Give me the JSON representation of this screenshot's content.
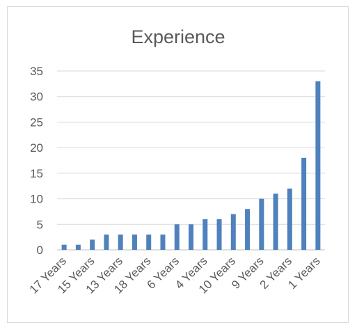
{
  "chart_data": {
    "type": "bar",
    "title": "Experience",
    "xlabel": "",
    "ylabel": "",
    "ylim": [
      0,
      35
    ],
    "yticks": [
      0,
      5,
      10,
      15,
      20,
      25,
      30,
      35
    ],
    "grid": true,
    "legend": "none",
    "bar_color": "#4f81bd",
    "categories": [
      "17 Years",
      "",
      "15 Years",
      "",
      "13 Years",
      "",
      "18 Years",
      "",
      "6 Years",
      "",
      "4 Years",
      "",
      "10 Years",
      "",
      "9 Years",
      "",
      "2 Years",
      "",
      "1 Years"
    ],
    "values": [
      1,
      1,
      2,
      3,
      3,
      3,
      3,
      3,
      5,
      5,
      6,
      6,
      7,
      8,
      10,
      11,
      12,
      18,
      33
    ]
  }
}
